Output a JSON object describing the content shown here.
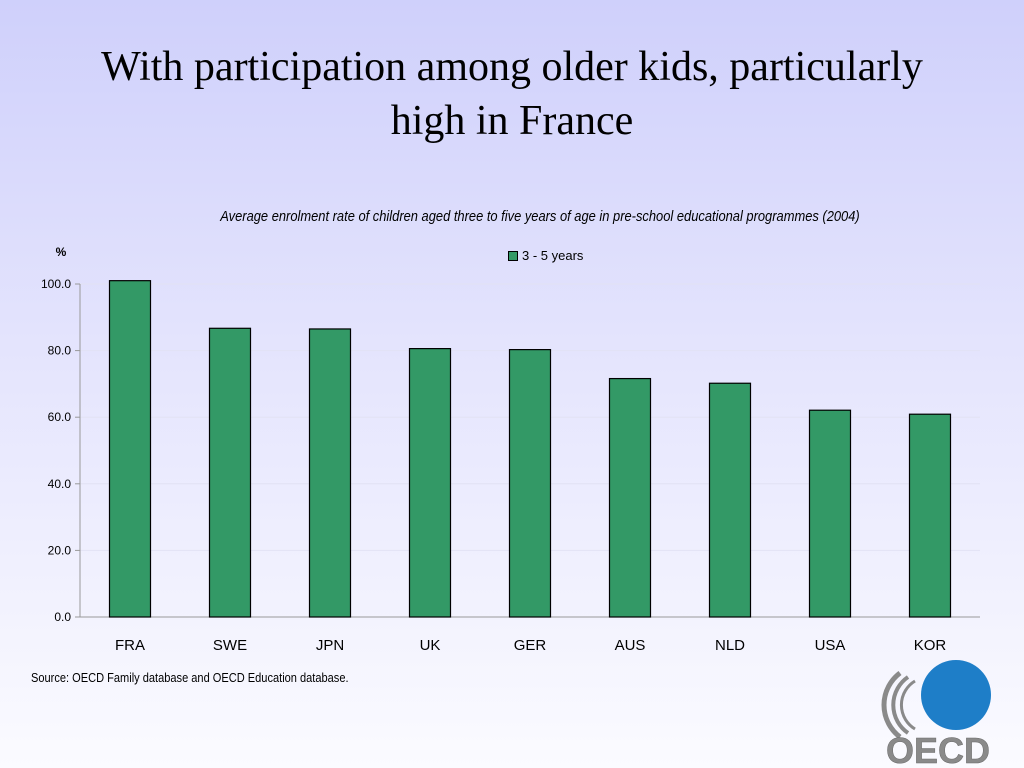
{
  "slide": {
    "title_line1": "With participation among older kids, particularly",
    "title_line2": "high in France",
    "source": "Source: OECD Family database and OECD Education database.",
    "logo_text": "OECD"
  },
  "chart_data": {
    "type": "bar",
    "title": "Average enrolment rate of children aged three to five years of age in pre-school educational programmes (2004)",
    "ylabel": "%",
    "xlabel": "",
    "categories": [
      "FRA",
      "SWE",
      "JPN",
      "UK",
      "GER",
      "AUS",
      "NLD",
      "USA",
      "KOR"
    ],
    "series": [
      {
        "name": "3 - 5 years",
        "values": [
          101,
          86.7,
          86.5,
          80.6,
          80.3,
          71.6,
          70.2,
          62.1,
          60.9
        ],
        "color": "#339966"
      }
    ],
    "ylim": [
      0,
      100
    ],
    "yticks": [
      "0.0",
      "20.0",
      "40.0",
      "60.0",
      "80.0",
      "100.0"
    ],
    "grid": true,
    "legend": "top-center"
  }
}
